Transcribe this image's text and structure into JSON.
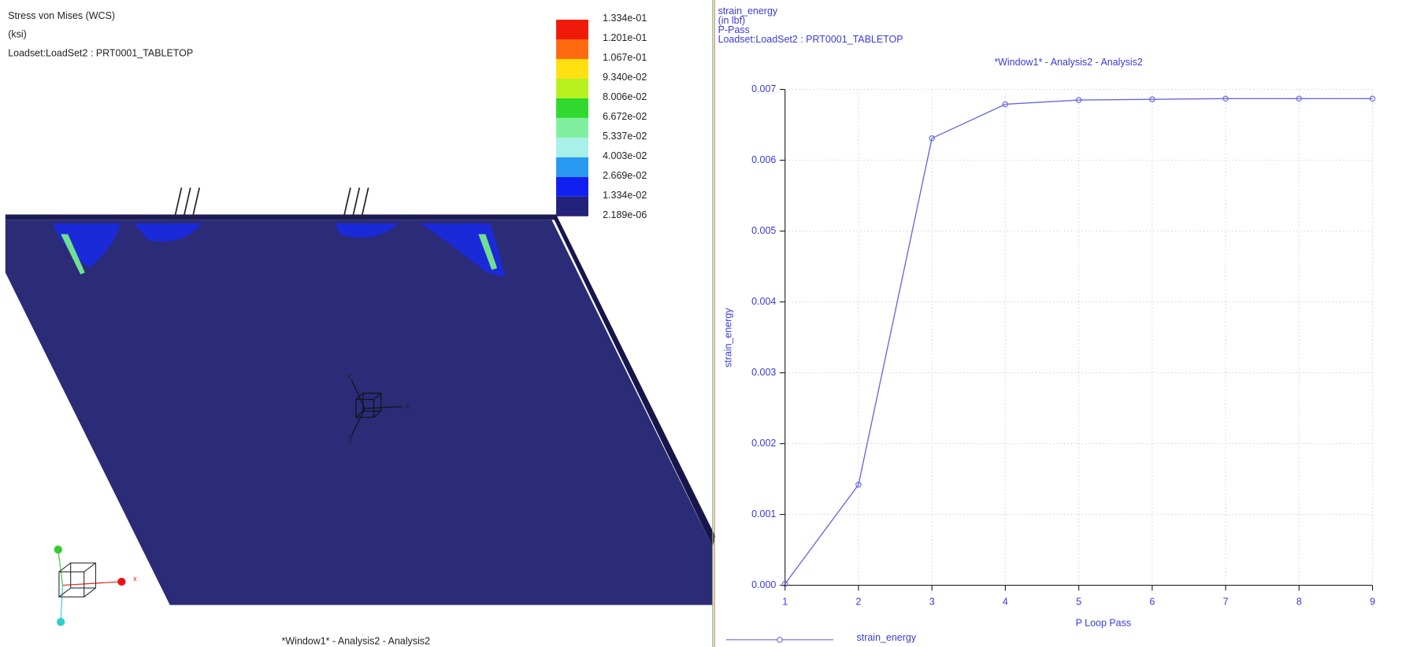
{
  "viewport": {
    "title": "Stress von Mises (WCS)",
    "unit": "(ksi)",
    "loadset": "Loadset:LoadSet2 :  PRT0001_TABLETOP",
    "window_title": "*Window1* - Analysis2 - Analysis2",
    "scale": {
      "labels": [
        "1.334e-01",
        "1.201e-01",
        "1.067e-01",
        "9.340e-02",
        "8.006e-02",
        "6.672e-02",
        "5.337e-02",
        "4.003e-02",
        "2.669e-02",
        "1.334e-02",
        "2.189e-06"
      ],
      "colors": [
        "#f01a0a",
        "#ff6a10",
        "#ffe010",
        "#b8f020",
        "#30d830",
        "#80f0a0",
        "#a8f0e8",
        "#2898f0",
        "#1020f0",
        "#22227a"
      ]
    },
    "triad": {
      "y": "Y",
      "x": "X",
      "z": "Z"
    },
    "orient_x": "x"
  },
  "chart_data": {
    "type": "line",
    "header": [
      "strain_energy",
      "(in lbf)",
      "P-Pass",
      "Loadset:LoadSet2 :  PRT0001_TABLETOP"
    ],
    "title": "*Window1* - Analysis2 - Analysis2",
    "xlabel": "P Loop Pass",
    "ylabel": "strain_energy",
    "x": [
      1,
      2,
      3,
      4,
      5,
      6,
      7,
      8,
      9
    ],
    "series": [
      {
        "name": "strain_energy",
        "color": "#6868e0",
        "values": [
          2e-05,
          0.00142,
          0.00631,
          0.00679,
          0.00685,
          0.00686,
          0.00687,
          0.00687,
          0.00687
        ]
      }
    ],
    "xlim": [
      1,
      9
    ],
    "ylim": [
      0,
      0.007
    ],
    "xticks": [
      1,
      2,
      3,
      4,
      5,
      6,
      7,
      8,
      9
    ],
    "yticks": [
      {
        "value": 0,
        "label": "0.000"
      },
      0.001,
      0.002,
      0.003,
      0.004,
      0.005,
      0.006,
      0.007
    ],
    "grid": true
  }
}
